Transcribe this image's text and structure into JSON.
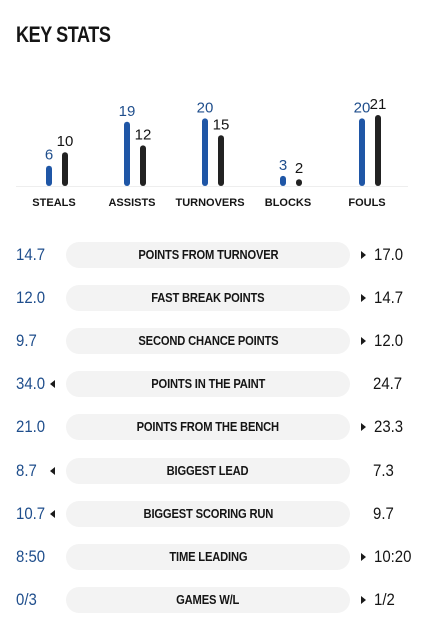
{
  "title": "KEY STATS",
  "colors": {
    "home": "#1f56a6",
    "away": "#222222",
    "home_text": "#1f4e8c"
  },
  "chart_data": {
    "type": "bar",
    "categories": [
      "STEALS",
      "ASSISTS",
      "TURNOVERS",
      "BLOCKS",
      "FOULS"
    ],
    "series": [
      {
        "values": [
          6,
          19,
          20,
          3,
          20
        ]
      },
      {
        "values": [
          10,
          12,
          15,
          2,
          21
        ]
      }
    ]
  },
  "rows": [
    {
      "left": "14.7",
      "label": "POINTS FROM TURNOVER",
      "right": "17.0",
      "leader": "right"
    },
    {
      "left": "12.0",
      "label": "FAST BREAK POINTS",
      "right": "14.7",
      "leader": "right"
    },
    {
      "left": "9.7",
      "label": "SECOND CHANCE POINTS",
      "right": "12.0",
      "leader": "right"
    },
    {
      "left": "34.0",
      "label": "POINTS IN THE PAINT",
      "right": "24.7",
      "leader": "left"
    },
    {
      "left": "21.0",
      "label": "POINTS FROM THE BENCH",
      "right": "23.3",
      "leader": "right"
    },
    {
      "left": "8.7",
      "label": "BIGGEST LEAD",
      "right": "7.3",
      "leader": "left"
    },
    {
      "left": "10.7",
      "label": "BIGGEST SCORING RUN",
      "right": "9.7",
      "leader": "left"
    },
    {
      "left": "8:50",
      "label": "TIME LEADING",
      "right": "10:20",
      "leader": "right"
    },
    {
      "left": "0/3",
      "label": "GAMES W/L",
      "right": "1/2",
      "leader": "right"
    }
  ]
}
